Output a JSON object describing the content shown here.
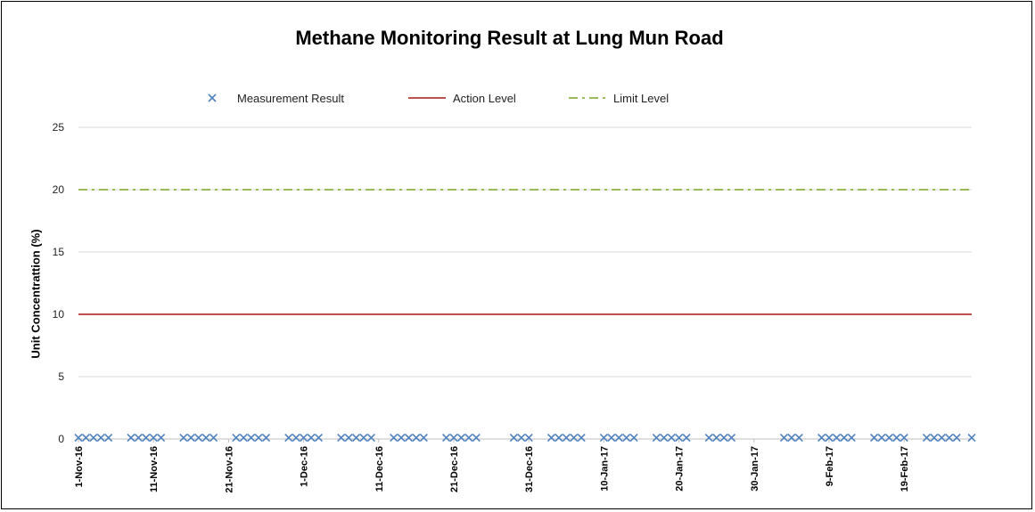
{
  "chart_data": {
    "type": "line",
    "title": "Methane Monitoring Result at Lung Mun Road",
    "xlabel": "",
    "ylabel": "Unit Concentrattion (%)",
    "ylim": [
      0,
      25
    ],
    "yticks": [
      0,
      5,
      10,
      15,
      20,
      25
    ],
    "x_range": [
      "1-Nov-16",
      "28-Feb-17"
    ],
    "x_ticks": [
      "1-Nov-16",
      "11-Nov-16",
      "21-Nov-16",
      "1-Dec-16",
      "11-Dec-16",
      "21-Dec-16",
      "31-Dec-16",
      "10-Jan-17",
      "20-Jan-17",
      "30-Jan-17",
      "9-Feb-17",
      "19-Feb-17"
    ],
    "grid": "horizontal",
    "legend_position": "top",
    "series": [
      {
        "name": "Measurement Result",
        "style": "markers",
        "marker": "x",
        "color": "#4f81bd",
        "x": [
          "1-Nov-16",
          "2-Nov-16",
          "3-Nov-16",
          "4-Nov-16",
          "5-Nov-16",
          "8-Nov-16",
          "9-Nov-16",
          "10-Nov-16",
          "11-Nov-16",
          "12-Nov-16",
          "15-Nov-16",
          "16-Nov-16",
          "17-Nov-16",
          "18-Nov-16",
          "19-Nov-16",
          "22-Nov-16",
          "23-Nov-16",
          "24-Nov-16",
          "25-Nov-16",
          "26-Nov-16",
          "29-Nov-16",
          "30-Nov-16",
          "1-Dec-16",
          "2-Dec-16",
          "3-Dec-16",
          "6-Dec-16",
          "7-Dec-16",
          "8-Dec-16",
          "9-Dec-16",
          "10-Dec-16",
          "13-Dec-16",
          "14-Dec-16",
          "15-Dec-16",
          "16-Dec-16",
          "17-Dec-16",
          "20-Dec-16",
          "21-Dec-16",
          "22-Dec-16",
          "23-Dec-16",
          "24-Dec-16",
          "29-Dec-16",
          "30-Dec-16",
          "31-Dec-16",
          "3-Jan-17",
          "4-Jan-17",
          "5-Jan-17",
          "6-Jan-17",
          "7-Jan-17",
          "10-Jan-17",
          "11-Jan-17",
          "12-Jan-17",
          "13-Jan-17",
          "14-Jan-17",
          "17-Jan-17",
          "18-Jan-17",
          "19-Jan-17",
          "20-Jan-17",
          "21-Jan-17",
          "24-Jan-17",
          "25-Jan-17",
          "26-Jan-17",
          "27-Jan-17",
          "3-Feb-17",
          "4-Feb-17",
          "5-Feb-17",
          "8-Feb-17",
          "9-Feb-17",
          "10-Feb-17",
          "11-Feb-17",
          "12-Feb-17",
          "15-Feb-17",
          "16-Feb-17",
          "17-Feb-17",
          "18-Feb-17",
          "19-Feb-17",
          "22-Feb-17",
          "23-Feb-17",
          "24-Feb-17",
          "25-Feb-17",
          "26-Feb-17",
          "28-Feb-17"
        ],
        "y": [
          0.1,
          0.1,
          0.1,
          0.1,
          0.1,
          0.1,
          0.1,
          0.1,
          0.1,
          0.1,
          0.1,
          0.1,
          0.1,
          0.1,
          0.1,
          0.1,
          0.1,
          0.1,
          0.1,
          0.1,
          0.1,
          0.1,
          0.1,
          0.1,
          0.1,
          0.1,
          0.1,
          0.1,
          0.1,
          0.1,
          0.1,
          0.1,
          0.1,
          0.1,
          0.1,
          0.1,
          0.1,
          0.1,
          0.1,
          0.1,
          0.1,
          0.1,
          0.1,
          0.1,
          0.1,
          0.1,
          0.1,
          0.1,
          0.1,
          0.1,
          0.1,
          0.1,
          0.1,
          0.1,
          0.1,
          0.1,
          0.1,
          0.1,
          0.1,
          0.1,
          0.1,
          0.1,
          0.1,
          0.1,
          0.1,
          0.1,
          0.1,
          0.1,
          0.1,
          0.1,
          0.1,
          0.1,
          0.1,
          0.1,
          0.1,
          0.1,
          0.1,
          0.1,
          0.1,
          0.1,
          0.1
        ]
      },
      {
        "name": "Action Level",
        "style": "solid",
        "color": "#c0504d",
        "x": [
          "1-Nov-16",
          "28-Feb-17"
        ],
        "y": [
          10,
          10
        ]
      },
      {
        "name": "Limit Level",
        "style": "dash-dot",
        "color": "#9bbb59",
        "x": [
          "1-Nov-16",
          "28-Feb-17"
        ],
        "y": [
          20,
          20
        ]
      }
    ]
  }
}
